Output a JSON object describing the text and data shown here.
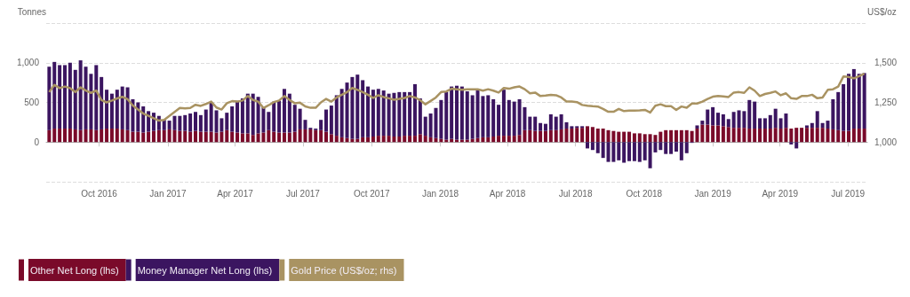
{
  "chart_data": {
    "type": "bar",
    "ylabel": "Tonnes",
    "y2label": "US$/oz",
    "x": [
      "2016-07-26",
      "2016-08-02",
      "2016-08-09",
      "2016-08-16",
      "2016-08-23",
      "2016-08-30",
      "2016-09-06",
      "2016-09-13",
      "2016-09-20",
      "2016-09-27",
      "2016-10-04",
      "2016-10-11",
      "2016-10-18",
      "2016-10-25",
      "2016-11-01",
      "2016-11-08",
      "2016-11-15",
      "2016-11-22",
      "2016-11-29",
      "2016-12-06",
      "2016-12-13",
      "2016-12-20",
      "2016-12-27",
      "2017-01-03",
      "2017-01-10",
      "2017-01-17",
      "2017-01-24",
      "2017-01-31",
      "2017-02-07",
      "2017-02-14",
      "2017-02-21",
      "2017-02-28",
      "2017-03-07",
      "2017-03-14",
      "2017-03-21",
      "2017-03-28",
      "2017-04-04",
      "2017-04-11",
      "2017-04-18",
      "2017-04-25",
      "2017-05-02",
      "2017-05-09",
      "2017-05-16",
      "2017-05-23",
      "2017-05-30",
      "2017-06-06",
      "2017-06-13",
      "2017-06-20",
      "2017-06-27",
      "2017-07-04",
      "2017-07-11",
      "2017-07-18",
      "2017-07-25",
      "2017-08-01",
      "2017-08-08",
      "2017-08-15",
      "2017-08-22",
      "2017-08-29",
      "2017-09-05",
      "2017-09-12",
      "2017-09-19",
      "2017-09-26",
      "2017-10-03",
      "2017-10-10",
      "2017-10-17",
      "2017-10-24",
      "2017-10-31",
      "2017-11-07",
      "2017-11-14",
      "2017-11-21",
      "2017-11-28",
      "2017-12-05",
      "2017-12-12",
      "2017-12-19",
      "2017-12-26",
      "2018-01-02",
      "2018-01-09",
      "2018-01-16",
      "2018-01-23",
      "2018-01-30",
      "2018-02-06",
      "2018-02-13",
      "2018-02-20",
      "2018-02-27",
      "2018-03-06",
      "2018-03-13",
      "2018-03-20",
      "2018-03-27",
      "2018-04-03",
      "2018-04-10",
      "2018-04-17",
      "2018-04-24",
      "2018-05-01",
      "2018-05-08",
      "2018-05-15",
      "2018-05-22",
      "2018-05-29",
      "2018-06-05",
      "2018-06-12",
      "2018-06-19",
      "2018-06-26",
      "2018-07-03",
      "2018-07-10",
      "2018-07-17",
      "2018-07-24",
      "2018-07-31",
      "2018-08-07",
      "2018-08-14",
      "2018-08-21",
      "2018-08-28",
      "2018-09-04",
      "2018-09-11",
      "2018-09-18",
      "2018-09-25",
      "2018-10-02",
      "2018-10-09",
      "2018-10-16",
      "2018-10-23",
      "2018-10-30",
      "2018-11-06",
      "2018-11-13",
      "2018-11-20",
      "2018-11-27",
      "2018-12-04",
      "2018-12-11",
      "2018-12-18",
      "2018-12-25",
      "2019-01-01",
      "2019-01-08",
      "2019-01-15",
      "2019-01-22",
      "2019-01-29",
      "2019-02-05",
      "2019-02-12",
      "2019-02-19",
      "2019-02-26",
      "2019-03-05",
      "2019-03-12",
      "2019-03-19",
      "2019-03-26",
      "2019-04-02",
      "2019-04-09",
      "2019-04-16",
      "2019-04-23",
      "2019-04-30",
      "2019-05-07",
      "2019-05-14",
      "2019-05-21",
      "2019-05-28",
      "2019-06-04",
      "2019-06-11",
      "2019-06-18",
      "2019-06-25",
      "2019-07-02",
      "2019-07-09",
      "2019-07-16",
      "2019-07-23"
    ],
    "series": [
      {
        "name": "Other Net Long (lhs)",
        "color": "#7a0a2a",
        "values": [
          150,
          170,
          170,
          170,
          170,
          160,
          150,
          160,
          160,
          150,
          160,
          170,
          170,
          170,
          160,
          150,
          130,
          130,
          120,
          130,
          140,
          150,
          150,
          160,
          150,
          140,
          140,
          130,
          140,
          130,
          130,
          130,
          120,
          130,
          150,
          130,
          120,
          110,
          110,
          90,
          110,
          120,
          150,
          130,
          120,
          120,
          120,
          130,
          160,
          160,
          160,
          150,
          150,
          130,
          100,
          80,
          60,
          50,
          40,
          40,
          60,
          60,
          70,
          80,
          80,
          80,
          70,
          70,
          80,
          80,
          80,
          100,
          80,
          60,
          50,
          40,
          30,
          40,
          30,
          30,
          30,
          40,
          50,
          60,
          60,
          70,
          80,
          80,
          80,
          80,
          90,
          150,
          150,
          140,
          140,
          140,
          150,
          150,
          160,
          170,
          170,
          180,
          180,
          200,
          190,
          170,
          170,
          150,
          140,
          130,
          130,
          130,
          110,
          110,
          100,
          100,
          90,
          130,
          150,
          150,
          150,
          150,
          150,
          140,
          170,
          220,
          220,
          210,
          210,
          200,
          190,
          180,
          180,
          180,
          170,
          170,
          170,
          170,
          170,
          180,
          170,
          180,
          170,
          180,
          180,
          180,
          180,
          180,
          180,
          170,
          160,
          150,
          140,
          140,
          170,
          170,
          170
        ]
      },
      {
        "name": "Money Manager Net Long (lhs)",
        "color": "#3b1560",
        "values": [
          800,
          840,
          800,
          800,
          830,
          750,
          880,
          790,
          700,
          820,
          660,
          490,
          440,
          490,
          540,
          540,
          410,
          370,
          330,
          260,
          230,
          180,
          130,
          110,
          180,
          190,
          200,
          230,
          240,
          210,
          280,
          370,
          280,
          170,
          220,
          320,
          400,
          440,
          500,
          520,
          460,
          320,
          230,
          380,
          400,
          550,
          490,
          340,
          260,
          120,
          20,
          20,
          130,
          280,
          360,
          510,
          610,
          700,
          780,
          810,
          720,
          640,
          590,
          590,
          570,
          530,
          550,
          560,
          550,
          550,
          650,
          450,
          240,
          300,
          380,
          490,
          600,
          660,
          680,
          670,
          610,
          550,
          600,
          520,
          530,
          470,
          390,
          580,
          450,
          430,
          450,
          290,
          170,
          180,
          100,
          90,
          200,
          170,
          190,
          80,
          30,
          20,
          20,
          -80,
          -100,
          -140,
          -200,
          -250,
          -250,
          -230,
          -260,
          -240,
          -240,
          -250,
          -230,
          -330,
          -130,
          -100,
          -150,
          -150,
          -120,
          -230,
          -140,
          -10,
          40,
          50,
          190,
          230,
          160,
          150,
          100,
          200,
          220,
          210,
          360,
          340,
          130,
          130,
          170,
          240,
          130,
          180,
          -30,
          -80,
          0,
          30,
          60,
          210,
          60,
          100,
          380,
          480,
          590,
          720,
          750,
          690,
          700
        ]
      },
      {
        "name": "Gold Price (US$/oz; rhs)",
        "type": "line",
        "axis": "y2",
        "color": "#a99362",
        "values": [
          1315,
          1360,
          1340,
          1350,
          1340,
          1315,
          1345,
          1325,
          1310,
          1325,
          1265,
          1250,
          1262,
          1275,
          1285,
          1270,
          1230,
          1205,
          1180,
          1165,
          1150,
          1135,
          1140,
          1165,
          1190,
          1215,
          1212,
          1215,
          1235,
          1228,
          1240,
          1255,
          1218,
          1205,
          1245,
          1258,
          1255,
          1262,
          1290,
          1265,
          1255,
          1215,
          1232,
          1252,
          1262,
          1290,
          1265,
          1245,
          1248,
          1225,
          1216,
          1216,
          1250,
          1272,
          1255,
          1281,
          1298,
          1315,
          1341,
          1329,
          1315,
          1298,
          1278,
          1295,
          1284,
          1276,
          1267,
          1272,
          1278,
          1290,
          1281,
          1264,
          1238,
          1259,
          1281,
          1315,
          1319,
          1336,
          1333,
          1329,
          1333,
          1333,
          1333,
          1324,
          1333,
          1324,
          1312,
          1341,
          1336,
          1345,
          1350,
          1333,
          1307,
          1312,
          1290,
          1293,
          1298,
          1295,
          1281,
          1255,
          1255,
          1252,
          1234,
          1229,
          1226,
          1224,
          1209,
          1191,
          1191,
          1209,
          1195,
          1198,
          1198,
          1200,
          1203,
          1186,
          1229,
          1238,
          1226,
          1226,
          1203,
          1224,
          1216,
          1243,
          1243,
          1255,
          1272,
          1286,
          1290,
          1288,
          1284,
          1312,
          1315,
          1310,
          1345,
          1324,
          1290,
          1303,
          1310,
          1319,
          1295,
          1307,
          1276,
          1272,
          1290,
          1290,
          1298,
          1276,
          1281,
          1329,
          1333,
          1350,
          1414,
          1410,
          1402,
          1416,
          1431
        ]
      }
    ],
    "xlim": [
      "2016-07-22",
      "2019-07-27"
    ],
    "xticks": [
      {
        "value": "2016-10-01",
        "label": "Oct 2016"
      },
      {
        "value": "2017-01-01",
        "label": "Jan 2017"
      },
      {
        "value": "2017-04-01",
        "label": "Apr 2017"
      },
      {
        "value": "2017-07-01",
        "label": "Jul 2017"
      },
      {
        "value": "2017-10-01",
        "label": "Oct 2017"
      },
      {
        "value": "2018-01-01",
        "label": "Jan 2018"
      },
      {
        "value": "2018-04-01",
        "label": "Apr 2018"
      },
      {
        "value": "2018-07-01",
        "label": "Jul 2018"
      },
      {
        "value": "2018-10-01",
        "label": "Oct 2018"
      },
      {
        "value": "2019-01-01",
        "label": "Jan 2019"
      },
      {
        "value": "2019-04-01",
        "label": "Apr 2019"
      },
      {
        "value": "2019-07-01",
        "label": "Jul 2019"
      }
    ],
    "ylim": [
      -500,
      1500
    ],
    "yticks": [
      0,
      500,
      {
        "value": 1000,
        "label": "1,000"
      },
      {
        "value": 1500,
        "label": null
      }
    ],
    "y2lim": [
      750,
      1750
    ],
    "y2ticks": [
      {
        "value": 1000,
        "label": "1,000"
      },
      {
        "value": 1250,
        "label": "1,250"
      },
      {
        "value": 1500,
        "label": "1,500"
      }
    ],
    "stacked": true,
    "grid": "y",
    "legend": "bottom left"
  }
}
